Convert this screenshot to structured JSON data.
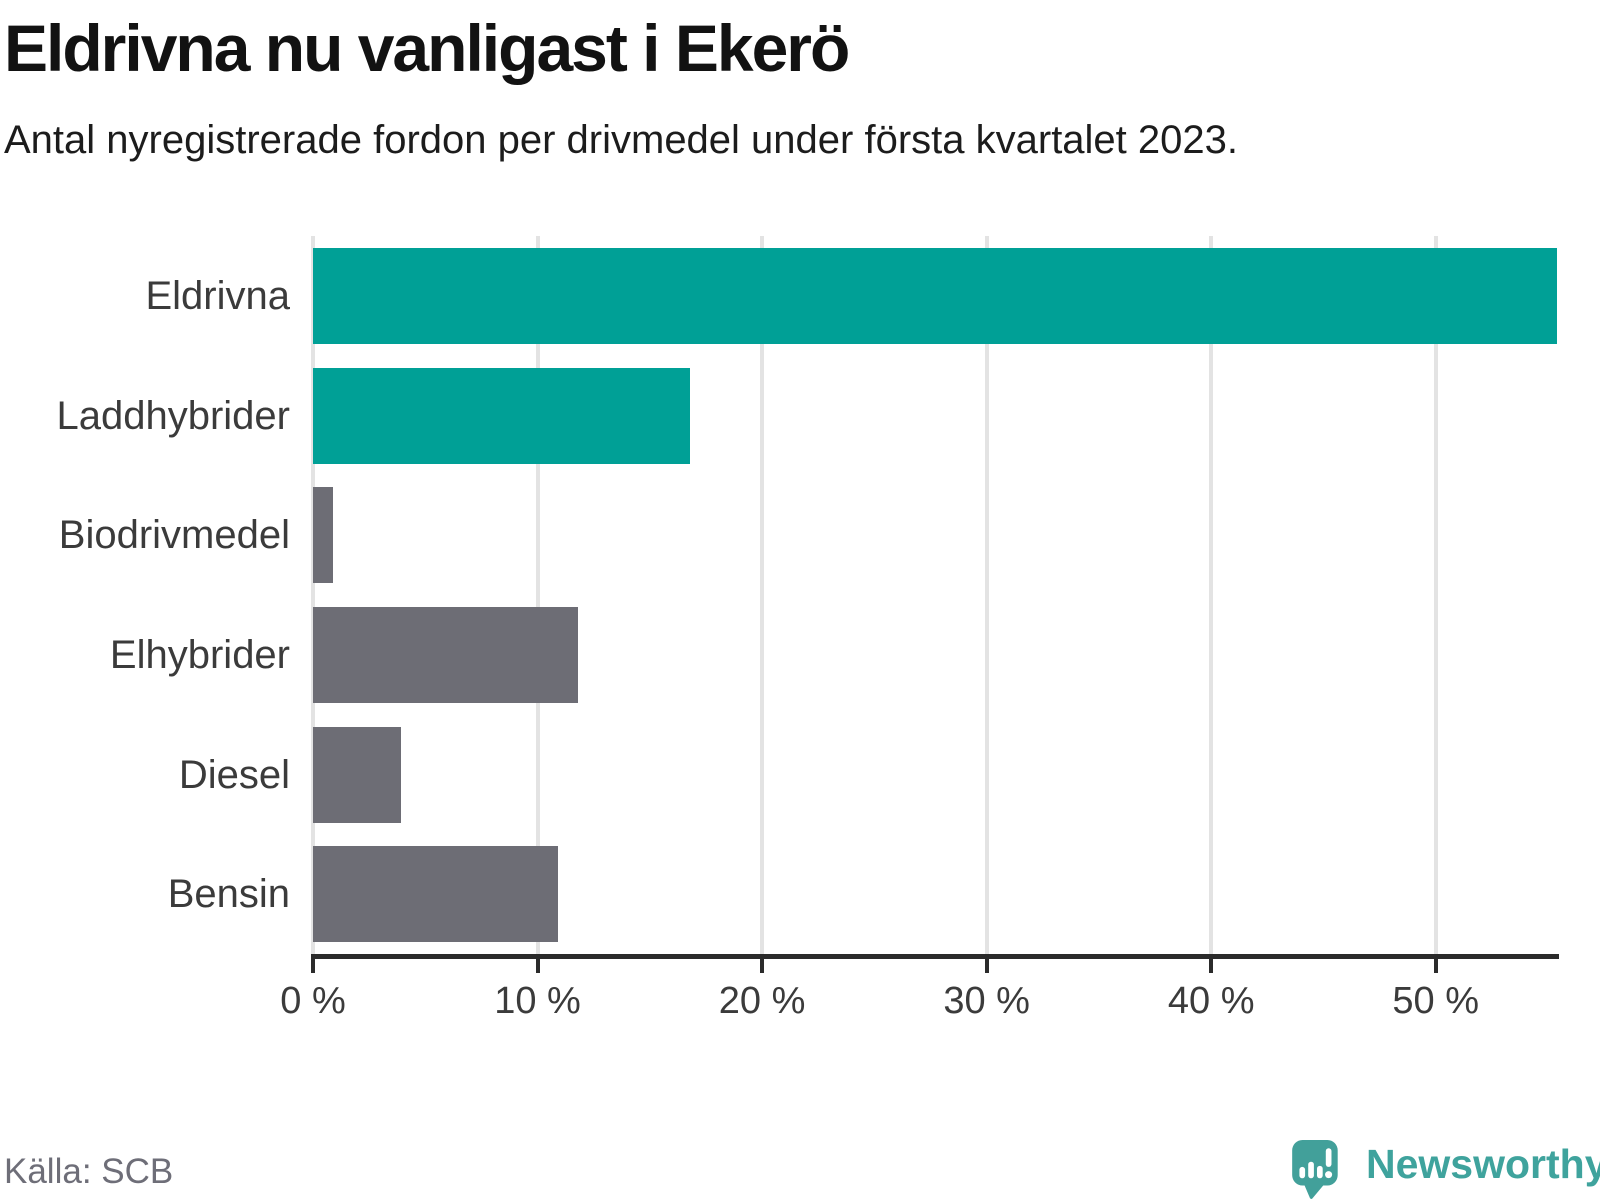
{
  "header": {
    "title": "Eldrivna nu vanligast i Ekerö",
    "subtitle": "Antal nyregistrerade fordon per drivmedel under första kvartalet 2023."
  },
  "footer": {
    "source": "Källa: SCB",
    "logo_text": "Newsworthy"
  },
  "colors": {
    "accent_teal": "#00a096",
    "muted_gray": "#6d6d75",
    "gridline": "#e3e3e3",
    "axis": "#2b2b2b",
    "label_text": "#3b3b3b",
    "source_text": "#6e6e78",
    "logo_teal": "#42a09a"
  },
  "chart_data": {
    "type": "bar",
    "orientation": "horizontal",
    "title": "Eldrivna nu vanligast i Ekerö",
    "subtitle": "Antal nyregistrerade fordon per drivmedel under första kvartalet 2023.",
    "categories": [
      "Eldrivna",
      "Laddhybrider",
      "Biodrivmedel",
      "Elhybrider",
      "Diesel",
      "Bensin"
    ],
    "values": [
      55.4,
      16.8,
      0.9,
      11.8,
      3.9,
      10.9
    ],
    "unit": "%",
    "bar_colors": [
      "#00a096",
      "#00a096",
      "#6d6d75",
      "#6d6d75",
      "#6d6d75",
      "#6d6d75"
    ],
    "xlabel": "",
    "ylabel": "",
    "xlim": [
      0,
      55.4
    ],
    "xticks": [
      0,
      10,
      20,
      30,
      40,
      50
    ],
    "xtick_suffix": " %",
    "grid": true,
    "legend": false,
    "source": "Källa: SCB"
  }
}
